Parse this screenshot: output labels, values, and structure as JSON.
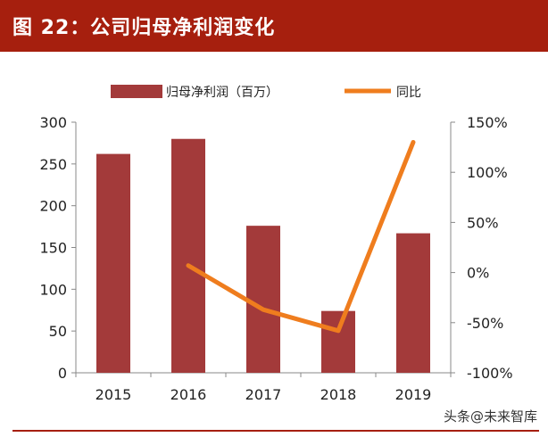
{
  "header": {
    "title": "图 22：公司归母净利润变化"
  },
  "watermark": "头条@未来智库",
  "chart_data": {
    "type": "bar",
    "categories": [
      "2015",
      "2016",
      "2017",
      "2018",
      "2019"
    ],
    "title": "",
    "xlabel": "",
    "ylabel": "",
    "ylim": [
      0,
      300
    ],
    "y2lim": [
      -100,
      150
    ],
    "y_ticks": [
      "0",
      "50",
      "100",
      "150",
      "200",
      "250",
      "300"
    ],
    "y2_ticks": [
      "-100%",
      "-50%",
      "0%",
      "50%",
      "100%",
      "150%"
    ],
    "legend_position": "top",
    "series": [
      {
        "name": "归母净利润（百万）",
        "type": "bar",
        "axis": "left",
        "color": "#a33a3a",
        "values": [
          262,
          280,
          176,
          74,
          167
        ]
      },
      {
        "name": "同比",
        "type": "line",
        "axis": "right",
        "color": "#ef7d1e",
        "values": [
          null,
          7,
          -37,
          -58,
          130
        ]
      }
    ]
  }
}
